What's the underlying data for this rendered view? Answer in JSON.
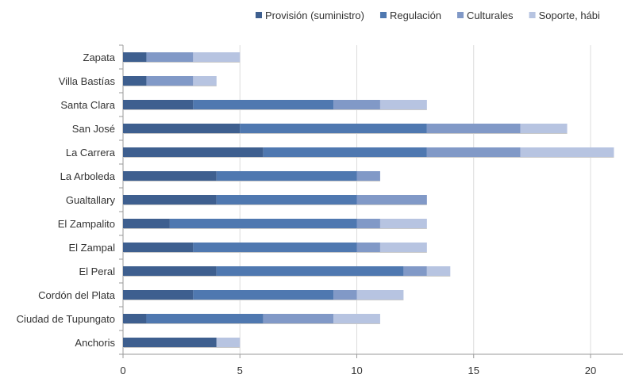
{
  "chart_data": {
    "type": "bar",
    "orientation": "horizontal",
    "stacked": true,
    "categories": [
      "Zapata",
      "Villa Bastías",
      "Santa Clara",
      "San José",
      "La Carrera",
      "La Arboleda",
      "Gualtallary",
      "El Zampalito",
      "El Zampal",
      "El Peral",
      "Cordón del Plata",
      "Ciudad de Tupungato",
      "Anchoris"
    ],
    "series": [
      {
        "name": "Provisión (suministro)",
        "color": "#3e5f8f",
        "values": [
          1,
          1,
          3,
          5,
          6,
          4,
          4,
          2,
          3,
          4,
          3,
          1,
          4
        ]
      },
      {
        "name": "Regulación",
        "color": "#4f78b0",
        "values": [
          0,
          0,
          6,
          8,
          7,
          6,
          6,
          8,
          7,
          8,
          6,
          5,
          0
        ]
      },
      {
        "name": "Culturales",
        "color": "#8199c7",
        "values": [
          2,
          2,
          2,
          4,
          4,
          1,
          3,
          1,
          1,
          1,
          1,
          3,
          0
        ]
      },
      {
        "name": "Soporte, hábi",
        "color": "#b7c4e1",
        "values": [
          2,
          1,
          2,
          2,
          4,
          0,
          0,
          2,
          2,
          1,
          2,
          2,
          1
        ]
      }
    ],
    "xlim": [
      0,
      21
    ],
    "xticks": [
      0,
      5,
      10,
      15,
      20
    ],
    "grid": true,
    "legend": "top-right",
    "title": "",
    "xlabel": "",
    "ylabel": ""
  }
}
